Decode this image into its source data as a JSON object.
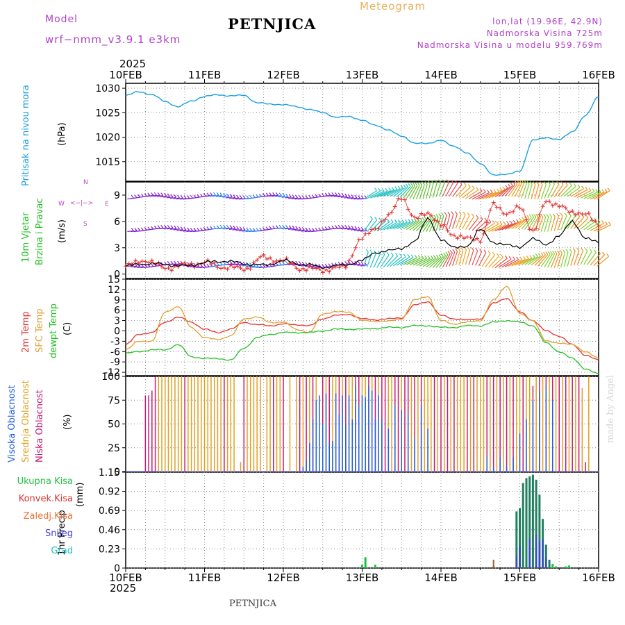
{
  "header": {
    "model_label": "Model",
    "model_name": "wrf−nmm_v3.9.1  e3km",
    "station": "PETNJICA",
    "title": "Meteogram",
    "lonlat": "lon,lat (19.96E, 42.9N)",
    "altitude": "Nadmorska Visina 725m",
    "model_altitude": "Nadmorska Visina u modelu 959.769m",
    "year_top": "2025",
    "year_bottom": "2025",
    "footer_station": "PETNJICA",
    "credit": "made by Angel"
  },
  "colors": {
    "pressure": "#1aa0e0",
    "temp": "#e83030",
    "sfc_temp": "#e0a030",
    "dewpt": "#20c020",
    "high_cloud": "#2060e0",
    "mid_cloud": "#e0a020",
    "low_cloud": "#c81870",
    "total_precip": "#20c040",
    "conv_precip": "#e03030",
    "frozen": "#f07030",
    "snow": "#4040e0",
    "grad": "#20c0c0",
    "wind_label": "#20c020",
    "dir_label": "#c040c0"
  },
  "time_axis": {
    "day_labels": [
      "10FEB",
      "11FEB",
      "12FEB",
      "13FEB",
      "14FEB",
      "15FEB",
      "16FEB"
    ]
  },
  "panel_labels": {
    "pressure": {
      "name": "Pritisak na nivou mora",
      "unit": "(hPa)"
    },
    "wind": {
      "name1": "10m Vjetar",
      "name2": "Brzina i Pravac",
      "unit": "(m/s)",
      "dir_n": "N",
      "dir_s": "S",
      "dir_w": "W",
      "dir_e": "E",
      "dir_arrows": "<−|−>"
    },
    "temp": {
      "name1": "2m Temp",
      "name2": "SFC Temp",
      "name3": "dewpt Temp",
      "unit": "(C)"
    },
    "cloud": {
      "name1": "Visoka Oblacnost",
      "name2": "Srednja Oblacnost",
      "name3": "Niska Oblacnost",
      "unit": "(%)"
    },
    "precip": {
      "name": "1hr Precip",
      "unit": "(mm)"
    }
  },
  "precip_legend": [
    "Ukupna Kisa",
    "Konvek.Kisa",
    "Zaledj.Kisa",
    "Snijeg",
    "Grad"
  ],
  "chart_data": [
    {
      "type": "line",
      "title": "Pritisak na nivou mora",
      "ylabel": "(hPa)",
      "ylim": [
        1011,
        1031
      ],
      "yticks": [
        1015,
        1020,
        1025,
        1030
      ],
      "x_hours": [
        0,
        4,
        8,
        12,
        16,
        20,
        24,
        28,
        32,
        36,
        40,
        44,
        48,
        52,
        56,
        60,
        64,
        68,
        72,
        76,
        80,
        84,
        88,
        92,
        96,
        100,
        104,
        108,
        112,
        116,
        120,
        124,
        128,
        132,
        136,
        140,
        144
      ],
      "values": [
        1028.5,
        1029.3,
        1028.7,
        1027.3,
        1026.2,
        1027.4,
        1028.3,
        1028.7,
        1028.4,
        1028.6,
        1027.0,
        1026.8,
        1026.6,
        1026.3,
        1025.6,
        1025.1,
        1024.0,
        1024.3,
        1023.4,
        1022.5,
        1021.4,
        1020.3,
        1018.7,
        1018.8,
        1019.3,
        1018.2,
        1016.7,
        1014.7,
        1012.2,
        1012.5,
        1013.0,
        1019.5,
        1019.8,
        1019.6,
        1021.0,
        1024.5,
        1028.2
      ]
    },
    {
      "type": "line",
      "title": "10m Vjetar Brzina i Pravac",
      "ylabel": "(m/s)",
      "ylim": [
        -0.5,
        10.5
      ],
      "yticks": [
        0,
        3,
        6,
        9
      ],
      "x_hours": [
        0,
        6,
        12,
        18,
        24,
        30,
        36,
        42,
        48,
        54,
        60,
        66,
        72,
        76,
        80,
        84,
        88,
        92,
        96,
        100,
        104,
        108,
        112,
        116,
        120,
        124,
        128,
        132,
        136,
        140,
        144
      ],
      "speed": [
        0.9,
        1.2,
        1.1,
        0.9,
        1.3,
        1.5,
        1.2,
        1.0,
        1.5,
        1.1,
        0.8,
        1.0,
        1.5,
        2.5,
        2.6,
        3.0,
        3.6,
        6.5,
        3.8,
        3.2,
        3.0,
        5.3,
        3.4,
        3.5,
        2.9,
        4.2,
        3.2,
        4.5,
        5.9,
        4.2,
        3.5
      ],
      "gust": [
        0.9,
        1.6,
        0.7,
        1.0,
        1.3,
        0.8,
        0.6,
        1.9,
        1.5,
        0.6,
        0.5,
        0.7,
        4.0,
        5.3,
        6.5,
        8.9,
        6.2,
        7.1,
        5.5,
        4.5,
        4.0,
        4.0,
        7.8,
        7.0,
        7.5,
        5.0,
        8.1,
        8.0,
        6.8,
        7.1,
        5.4
      ],
      "barb_rows": [
        0.9,
        5.0,
        8.7
      ]
    },
    {
      "type": "line",
      "title": "2m Temp / SFC Temp / dewpt Temp",
      "ylabel": "(C)",
      "ylim": [
        -13,
        15
      ],
      "yticks": [
        -12,
        -9,
        -6,
        -3,
        0,
        3,
        6,
        9,
        12,
        15
      ],
      "x_hours": [
        0,
        4,
        8,
        12,
        16,
        20,
        24,
        28,
        32,
        36,
        40,
        44,
        48,
        52,
        56,
        60,
        64,
        68,
        72,
        76,
        80,
        84,
        88,
        92,
        96,
        100,
        104,
        108,
        112,
        116,
        120,
        124,
        128,
        132,
        136,
        140,
        144
      ],
      "series": [
        {
          "name": "2m Temp",
          "values": [
            -4.0,
            -1.0,
            -0.5,
            2.5,
            4.0,
            2.5,
            0.5,
            -0.5,
            0.5,
            2.5,
            1.8,
            1.5,
            2.0,
            1.8,
            1.5,
            3.5,
            4.5,
            4.8,
            3.5,
            3.2,
            3.5,
            3.8,
            7.5,
            8.5,
            4.5,
            3.5,
            3.2,
            3.5,
            8.0,
            9.5,
            5.5,
            3.0,
            0.0,
            -1.5,
            -4.0,
            -7.0,
            -8.5
          ]
        },
        {
          "name": "SFC Temp",
          "values": [
            -5.5,
            -3.0,
            -3.0,
            5.5,
            7.0,
            1.0,
            -2.0,
            -2.5,
            -1.5,
            3.5,
            4.0,
            2.5,
            2.5,
            0.5,
            -0.5,
            5.0,
            5.5,
            5.5,
            3.0,
            2.8,
            2.8,
            3.5,
            9.0,
            10.0,
            3.0,
            2.0,
            2.5,
            3.0,
            9.0,
            13.0,
            5.0,
            3.0,
            -3.0,
            -3.5,
            -4.0,
            -6.0,
            -8.0
          ]
        },
        {
          "name": "dewpt Temp",
          "values": [
            -6.5,
            -6.0,
            -5.5,
            -5.5,
            -4.0,
            -7.5,
            -8.0,
            -8.0,
            -8.5,
            -5.0,
            -2.0,
            -1.0,
            -0.5,
            -0.5,
            -0.5,
            0.0,
            0.5,
            0.5,
            0.5,
            0.7,
            1.0,
            1.0,
            1.5,
            1.5,
            1.0,
            1.0,
            1.5,
            1.5,
            2.5,
            3.0,
            2.5,
            1.5,
            -3.5,
            -6.0,
            -8.0,
            -11.0,
            -12.5
          ]
        }
      ]
    },
    {
      "type": "bar",
      "title": "Visoka / Srednja / Niska Oblacnost",
      "ylabel": "(%)",
      "ylim": [
        0,
        100
      ],
      "yticks": [
        0,
        25,
        50,
        75,
        100
      ],
      "series": [
        {
          "name": "Niska Oblacnost",
          "x_hours": [
            6,
            7,
            8,
            9,
            18,
            30,
            36,
            45,
            48,
            53,
            55,
            57,
            60,
            62,
            65,
            67,
            70,
            71,
            74,
            76,
            78,
            79,
            82,
            83,
            85,
            86,
            88,
            90,
            94,
            96,
            98,
            100,
            104,
            106,
            110,
            112,
            114,
            116,
            118,
            121,
            124,
            126,
            128,
            130,
            132,
            134,
            136,
            138,
            140
          ],
          "values": [
            80,
            80,
            85,
            100,
            100,
            100,
            100,
            100,
            100,
            100,
            100,
            100,
            100,
            100,
            100,
            100,
            100,
            100,
            100,
            100,
            100,
            100,
            100,
            100,
            100,
            100,
            100,
            100,
            100,
            100,
            100,
            100,
            100,
            100,
            100,
            100,
            100,
            100,
            100,
            100,
            90,
            100,
            100,
            100,
            100,
            100,
            100,
            100,
            10
          ]
        },
        {
          "name": "Srednja Oblacnost",
          "x_hours": [
            10,
            11,
            12,
            13,
            14,
            15,
            16,
            17,
            19,
            20,
            21,
            22,
            23,
            24,
            25,
            26,
            27,
            28,
            29,
            31,
            32,
            33,
            35,
            37,
            38,
            39,
            40,
            41,
            43,
            44,
            45,
            46,
            47,
            50,
            52,
            54,
            56,
            58,
            61,
            63,
            64,
            66,
            68,
            69,
            72,
            73,
            75,
            77,
            80,
            81,
            84,
            87,
            89,
            91,
            92,
            93,
            95,
            97,
            99,
            101,
            102,
            103,
            105,
            107,
            108,
            109,
            111,
            113,
            115,
            117,
            119,
            120,
            122,
            123,
            125,
            127,
            129,
            131,
            133,
            135,
            137,
            139,
            141
          ],
          "values": [
            100,
            100,
            100,
            100,
            100,
            100,
            100,
            100,
            100,
            100,
            100,
            100,
            100,
            100,
            100,
            100,
            100,
            100,
            100,
            100,
            100,
            100,
            10,
            100,
            100,
            100,
            100,
            100,
            100,
            100,
            100,
            100,
            100,
            100,
            100,
            100,
            100,
            100,
            100,
            100,
            100,
            100,
            100,
            100,
            100,
            100,
            100,
            100,
            100,
            100,
            100,
            100,
            100,
            100,
            100,
            100,
            100,
            100,
            100,
            100,
            100,
            100,
            100,
            100,
            100,
            100,
            100,
            100,
            100,
            100,
            100,
            100,
            100,
            100,
            100,
            100,
            100,
            100,
            100,
            100,
            100,
            88,
            100
          ]
        },
        {
          "name": "Visoka Oblacnost",
          "x_hours": [
            54,
            55,
            56,
            57,
            58,
            59,
            60,
            61,
            62,
            63,
            64,
            65,
            66,
            67,
            68,
            69,
            70,
            71,
            72,
            73,
            74,
            75,
            76,
            77,
            78,
            80,
            82,
            84,
            86,
            88,
            90,
            92,
            110,
            112,
            114,
            116,
            118,
            120,
            122,
            124,
            126,
            128,
            130
          ],
          "values": [
            5,
            12,
            30,
            55,
            75,
            80,
            50,
            82,
            30,
            32,
            82,
            60,
            80,
            50,
            80,
            55,
            90,
            70,
            80,
            78,
            90,
            85,
            55,
            80,
            55,
            45,
            70,
            65,
            60,
            35,
            70,
            45,
            15,
            5,
            15,
            5,
            15,
            40,
            55,
            75,
            85,
            90,
            75
          ]
        }
      ]
    },
    {
      "type": "bar",
      "title": "1hr Precip",
      "ylabel": "1hr Precip (mm)",
      "ylim": [
        0,
        1.15
      ],
      "yticks": [
        0,
        0.23,
        0.46,
        0.69,
        0.92,
        1.15
      ],
      "series": [
        {
          "name": "Ukupna Kisa",
          "x_hours": [
            72,
            73,
            76,
            112,
            119,
            120,
            121,
            122,
            123,
            124,
            125,
            126,
            127,
            128,
            129,
            130,
            131,
            134,
            135
          ],
          "values": [
            0.04,
            0.13,
            0.04,
            0.02,
            0.68,
            0.72,
            1.02,
            1.08,
            1.1,
            1.12,
            1.06,
            0.88,
            0.59,
            0.28,
            0.1,
            0.05,
            0.02,
            0.02,
            0.03
          ]
        },
        {
          "name": "Zaledj.Kisa",
          "x_hours": [
            112
          ],
          "values": [
            0.1
          ]
        },
        {
          "name": "Snijeg",
          "x_hours": [
            119,
            120,
            123,
            125,
            126,
            127,
            128
          ],
          "values": [
            0.15,
            0.26,
            0.35,
            0.4,
            0.32,
            0.34,
            0.12
          ]
        }
      ]
    }
  ]
}
